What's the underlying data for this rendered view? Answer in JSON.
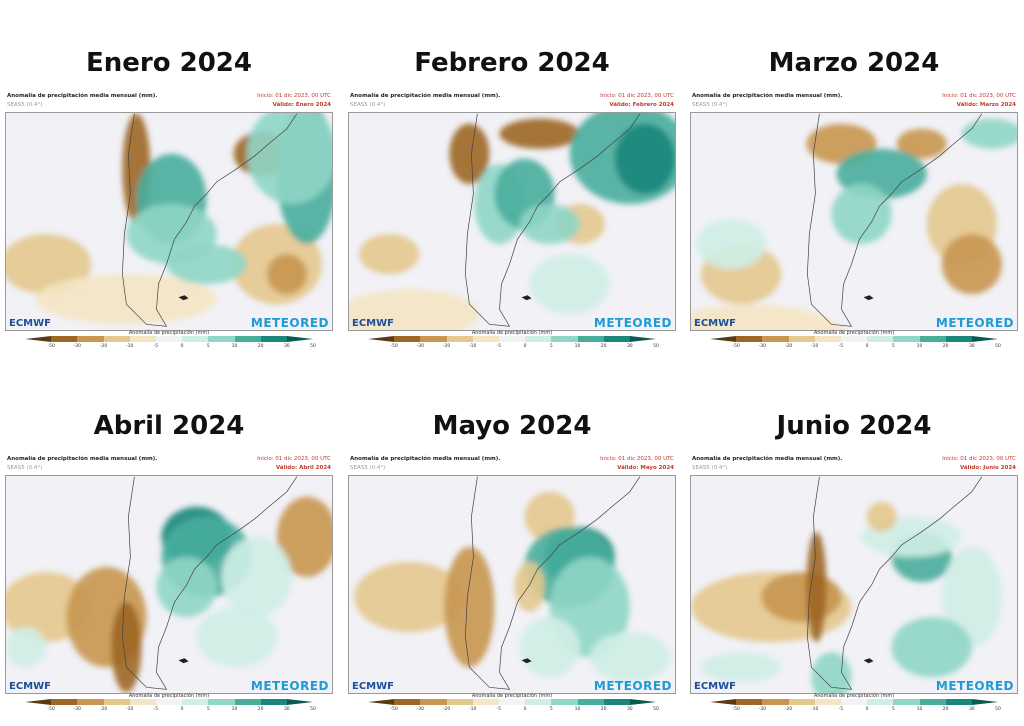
{
  "header": {
    "left_title": "Anomalía de precipitación media mensual (mm).",
    "left_subtitle": "SEAS5 (0.4°)",
    "init": "Inicio: 01 dic 2023, 00 UTC"
  },
  "logos": {
    "left": "ECMWF",
    "right": "METEORED"
  },
  "colorbar": {
    "label": "Anomalía de precipitación (mm)",
    "ticks": [
      "-50",
      "-30",
      "-20",
      "-10",
      "-5",
      "0",
      "5",
      "10",
      "20",
      "30",
      "50"
    ],
    "colors": [
      "#5a3a12",
      "#9c6624",
      "#c89650",
      "#e4c88e",
      "#f4e6c4",
      "#f3f3f6",
      "#cfeee6",
      "#8fd6c6",
      "#48ae9c",
      "#1a877a",
      "#0b5a50"
    ]
  },
  "panels": [
    {
      "title": "Enero 2024",
      "valid": "Válido: Enero 2024"
    },
    {
      "title": "Febrero 2024",
      "valid": "Válido: Febrero 2024"
    },
    {
      "title": "Marzo 2024",
      "valid": "Válido: Marzo 2024"
    },
    {
      "title": "Abril 2024",
      "valid": "Válido: Abril 2024"
    },
    {
      "title": "Mayo 2024",
      "valid": "Válido: Mayo 2024"
    },
    {
      "title": "Junio 2024",
      "valid": "Válido: Junio 2024"
    }
  ]
}
